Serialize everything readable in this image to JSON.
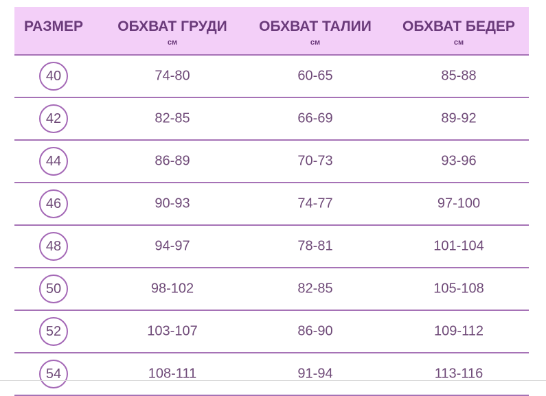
{
  "header": {
    "columns": [
      {
        "label": "РАЗМЕР",
        "unit": ""
      },
      {
        "label": "ОБХВАТ ГРУДИ",
        "unit": "см"
      },
      {
        "label": "ОБХВАТ ТАЛИИ",
        "unit": "см"
      },
      {
        "label": "ОБХВАТ БЕДЕР",
        "unit": "см"
      }
    ]
  },
  "rows": [
    {
      "size": "40",
      "chest": "74-80",
      "waist": "60-65",
      "hips": "85-88"
    },
    {
      "size": "42",
      "chest": "82-85",
      "waist": "66-69",
      "hips": "89-92"
    },
    {
      "size": "44",
      "chest": "86-89",
      "waist": "70-73",
      "hips": "93-96"
    },
    {
      "size": "46",
      "chest": "90-93",
      "waist": "74-77",
      "hips": "97-100"
    },
    {
      "size": "48",
      "chest": "94-97",
      "waist": "78-81",
      "hips": "101-104"
    },
    {
      "size": "50",
      "chest": "98-102",
      "waist": "82-85",
      "hips": "105-108"
    },
    {
      "size": "52",
      "chest": "103-107",
      "waist": "86-90",
      "hips": "109-112"
    },
    {
      "size": "54",
      "chest": "108-111",
      "waist": "91-94",
      "hips": "113-116"
    }
  ],
  "colors": {
    "header_bg": "#f3cff8",
    "header_text": "#6a3a7a",
    "divider": "#a672b6",
    "circle": "#a468b6"
  }
}
